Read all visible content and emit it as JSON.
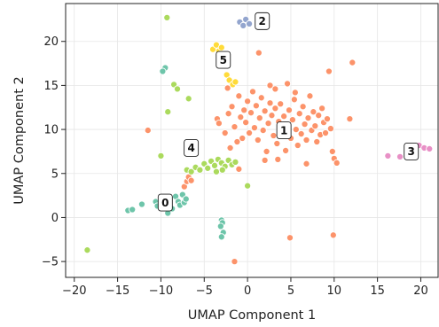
{
  "chart_data": {
    "type": "scatter",
    "title": "",
    "xlabel": "UMAP Component 1",
    "ylabel": "UMAP Component 2",
    "xlim": [
      -21,
      22
    ],
    "ylim": [
      -6.8,
      24.3
    ],
    "x_ticks": [
      -20,
      -15,
      -10,
      -5,
      0,
      5,
      10,
      15,
      20
    ],
    "y_ticks": [
      -5,
      0,
      5,
      10,
      15,
      20
    ],
    "x_tick_labels": [
      "−20",
      "−15",
      "−10",
      "−5",
      "0",
      "5",
      "10",
      "15",
      "20"
    ],
    "y_tick_labels": [
      "−5",
      "0",
      "5",
      "10",
      "15",
      "20"
    ],
    "grid": true,
    "legend": "none",
    "series": [
      {
        "color": "#66c2a5",
        "points": [
          [
            -13.8,
            0.8
          ],
          [
            -13.3,
            0.9
          ],
          [
            -12.2,
            1.5
          ],
          [
            -10.6,
            1.8
          ],
          [
            -10.4,
            1.3
          ],
          [
            -10.0,
            2.1
          ],
          [
            -9.8,
            1.6
          ],
          [
            -9.5,
            1.2
          ],
          [
            -9.2,
            0.5
          ],
          [
            -9.0,
            1.9
          ],
          [
            -8.7,
            1.0
          ],
          [
            -8.3,
            2.4
          ],
          [
            -8.0,
            1.8
          ],
          [
            -7.8,
            1.4
          ],
          [
            -7.5,
            2.6
          ],
          [
            -7.3,
            1.7
          ],
          [
            -7.1,
            2.1
          ],
          [
            -9.5,
            17.0
          ],
          [
            -9.8,
            16.6
          ],
          [
            -3.0,
            -0.3
          ],
          [
            -2.9,
            -0.6
          ],
          [
            -3.1,
            -1.0
          ],
          [
            -2.8,
            -1.7
          ],
          [
            -3.0,
            -2.2
          ]
        ]
      },
      {
        "color": "#fc8d62",
        "points": [
          [
            -11.5,
            9.9
          ],
          [
            -7.3,
            3.5
          ],
          [
            -7.0,
            4.1
          ],
          [
            -6.8,
            4.6
          ],
          [
            -6.5,
            4.2
          ],
          [
            -3.5,
            11.2
          ],
          [
            -3.3,
            10.7
          ],
          [
            -2.6,
            9.6
          ],
          [
            -2.2,
            11.8
          ],
          [
            -2.0,
            7.9
          ],
          [
            -1.8,
            12.6
          ],
          [
            -1.5,
            10.3
          ],
          [
            -1.2,
            8.6
          ],
          [
            -1.0,
            13.8
          ],
          [
            -0.8,
            11.4
          ],
          [
            -0.6,
            9.0
          ],
          [
            -0.4,
            12.2
          ],
          [
            -0.2,
            10.8
          ],
          [
            0.0,
            13.2
          ],
          [
            0.2,
            9.6
          ],
          [
            0.4,
            11.9
          ],
          [
            0.6,
            14.3
          ],
          [
            0.8,
            10.2
          ],
          [
            1.0,
            12.7
          ],
          [
            1.2,
            8.8
          ],
          [
            1.3,
            18.7
          ],
          [
            1.4,
            11.3
          ],
          [
            1.6,
            13.6
          ],
          [
            1.8,
            9.9
          ],
          [
            2.0,
            12.1
          ],
          [
            2.2,
            7.5
          ],
          [
            2.4,
            10.7
          ],
          [
            2.6,
            13.0
          ],
          [
            2.8,
            11.6
          ],
          [
            3.0,
            9.3
          ],
          [
            3.2,
            12.4
          ],
          [
            3.4,
            8.4
          ],
          [
            3.6,
            10.9
          ],
          [
            3.8,
            12.9
          ],
          [
            4.0,
            9.7
          ],
          [
            4.2,
            11.5
          ],
          [
            4.4,
            7.6
          ],
          [
            4.6,
            10.3
          ],
          [
            4.8,
            12.2
          ],
          [
            5.0,
            9.0
          ],
          [
            5.2,
            11.1
          ],
          [
            5.4,
            13.4
          ],
          [
            5.6,
            10.0
          ],
          [
            5.8,
            8.2
          ],
          [
            6.0,
            11.8
          ],
          [
            6.2,
            9.5
          ],
          [
            6.4,
            12.6
          ],
          [
            6.6,
            10.6
          ],
          [
            6.8,
            8.8
          ],
          [
            7.0,
            11.3
          ],
          [
            7.2,
            13.8
          ],
          [
            7.4,
            9.9
          ],
          [
            7.6,
            12.0
          ],
          [
            7.8,
            10.4
          ],
          [
            8.0,
            8.6
          ],
          [
            8.2,
            11.6
          ],
          [
            8.4,
            9.4
          ],
          [
            8.6,
            12.4
          ],
          [
            8.8,
            10.8
          ],
          [
            9.0,
            9.6
          ],
          [
            9.2,
            11.2
          ],
          [
            9.4,
            16.6
          ],
          [
            9.6,
            10.1
          ],
          [
            9.8,
            7.5
          ],
          [
            10.0,
            6.7
          ],
          [
            10.3,
            6.2
          ],
          [
            6.8,
            6.1
          ],
          [
            3.5,
            6.6
          ],
          [
            2.0,
            6.5
          ],
          [
            2.6,
            15.0
          ],
          [
            3.2,
            14.6
          ],
          [
            4.6,
            15.2
          ],
          [
            5.5,
            14.2
          ],
          [
            11.8,
            11.2
          ],
          [
            12.1,
            17.6
          ],
          [
            -2.3,
            14.7
          ],
          [
            -1.0,
            5.5
          ],
          [
            -1.5,
            -5.0
          ],
          [
            4.9,
            -2.3
          ],
          [
            9.9,
            -2.0
          ]
        ]
      },
      {
        "color": "#8da0cb",
        "points": [
          [
            -0.9,
            22.2
          ],
          [
            -0.5,
            21.8
          ],
          [
            -0.2,
            22.5
          ],
          [
            0.2,
            22.0
          ]
        ]
      },
      {
        "color": "#e78ac3",
        "points": [
          [
            16.2,
            7.0
          ],
          [
            17.6,
            6.9
          ],
          [
            18.4,
            7.1
          ],
          [
            19.3,
            7.6
          ],
          [
            19.8,
            8.2
          ],
          [
            20.4,
            7.9
          ],
          [
            21.0,
            7.8
          ]
        ]
      },
      {
        "color": "#a6d854",
        "points": [
          [
            -18.5,
            -3.7
          ],
          [
            -10.0,
            7.0
          ],
          [
            -9.3,
            22.7
          ],
          [
            -9.2,
            12.0
          ],
          [
            -8.5,
            15.1
          ],
          [
            -8.1,
            14.6
          ],
          [
            -6.8,
            13.5
          ],
          [
            -7.0,
            5.4
          ],
          [
            -6.5,
            5.2
          ],
          [
            -6.0,
            5.7
          ],
          [
            -5.5,
            5.4
          ],
          [
            -5.0,
            6.1
          ],
          [
            -4.6,
            5.6
          ],
          [
            -4.2,
            6.4
          ],
          [
            -3.8,
            5.9
          ],
          [
            -3.4,
            6.6
          ],
          [
            -3.0,
            6.2
          ],
          [
            -2.6,
            5.8
          ],
          [
            -2.2,
            6.5
          ],
          [
            -1.8,
            6.0
          ],
          [
            -1.4,
            6.3
          ],
          [
            -3.6,
            5.2
          ],
          [
            -2.9,
            5.4
          ],
          [
            0.0,
            3.6
          ]
        ]
      },
      {
        "color": "#ffd92f",
        "points": [
          [
            -4.0,
            19.1
          ],
          [
            -3.6,
            19.6
          ],
          [
            -3.3,
            18.9
          ],
          [
            -3.0,
            19.3
          ],
          [
            -2.7,
            18.5
          ],
          [
            -2.4,
            16.2
          ],
          [
            -2.1,
            15.6
          ],
          [
            -1.7,
            15.1
          ],
          [
            -1.4,
            15.4
          ]
        ]
      }
    ],
    "annotations": [
      {
        "text": "0",
        "x": -9.5,
        "y": 1.7
      },
      {
        "text": "2",
        "x": 1.7,
        "y": 22.3
      },
      {
        "text": "3",
        "x": 18.9,
        "y": 7.5
      },
      {
        "text": "4",
        "x": -6.5,
        "y": 7.9
      },
      {
        "text": "5",
        "x": -2.8,
        "y": 17.9
      },
      {
        "text": "1",
        "x": 4.2,
        "y": 9.9
      }
    ]
  }
}
